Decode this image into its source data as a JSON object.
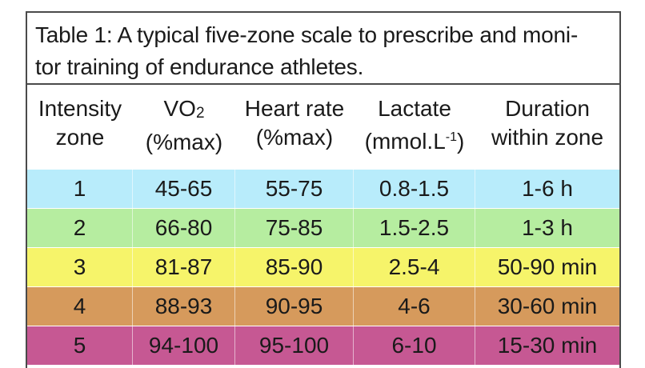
{
  "caption": {
    "line1": "Table 1: A typical five-zone scale to prescribe and moni-",
    "line2": "tor training of endurance athletes."
  },
  "headers": [
    {
      "line1": "Intensity",
      "line2": "zone"
    },
    {
      "line1_main": "VO",
      "line1_sub": "2",
      "line2": "(%max)"
    },
    {
      "line1": "Heart rate",
      "line2": "(%max)"
    },
    {
      "line1": "Lactate",
      "line2_main": "(mmol.L",
      "line2_sup": "-1",
      "line2_end": ")"
    },
    {
      "line1": "Duration",
      "line2": "within zone"
    }
  ],
  "rows": [
    {
      "zone": "1",
      "vo2": "45-65",
      "hr": "55-75",
      "lactate": "0.8-1.5",
      "duration": "1-6 h",
      "color": "#b8ecfb"
    },
    {
      "zone": "2",
      "vo2": "66-80",
      "hr": "75-85",
      "lactate": "1.5-2.5",
      "duration": "1-3 h",
      "color": "#b6eda0"
    },
    {
      "zone": "3",
      "vo2": "81-87",
      "hr": "85-90",
      "lactate": "2.5-4",
      "duration": "50-90 min",
      "color": "#f6f46a"
    },
    {
      "zone": "4",
      "vo2": "88-93",
      "hr": "90-95",
      "lactate": "4-6",
      "duration": "30-60 min",
      "color": "#d69a5c"
    },
    {
      "zone": "5",
      "vo2": "94-100",
      "hr": "95-100",
      "lactate": "6-10",
      "duration": "15-30 min",
      "color": "#c65893"
    }
  ]
}
